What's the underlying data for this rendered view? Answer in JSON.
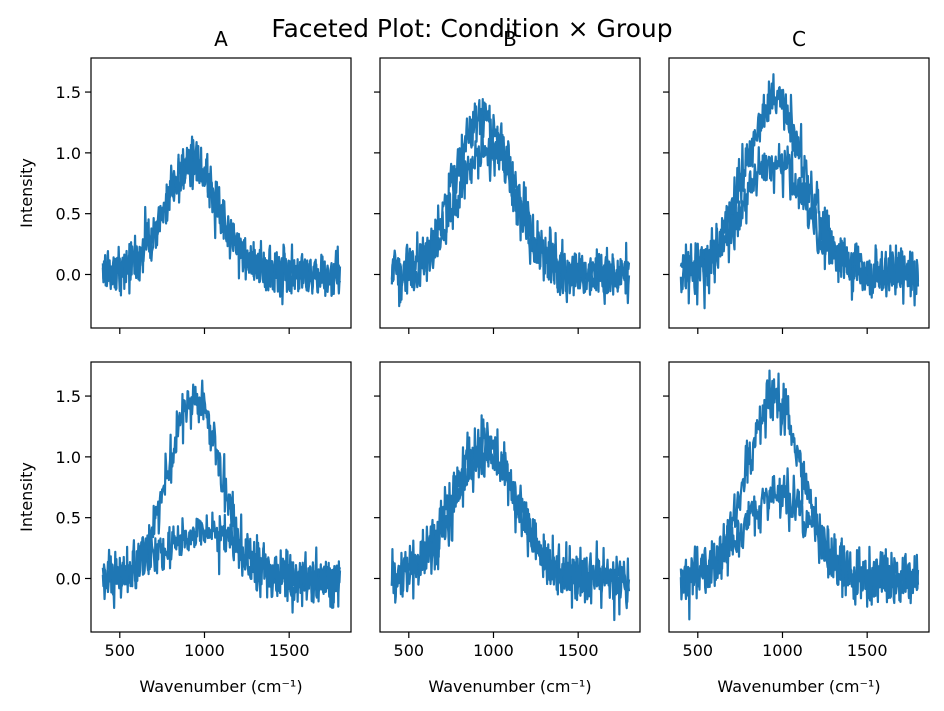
{
  "figure": {
    "title": "Faceted Plot: Condition × Group",
    "line_color": "#1f77b4"
  },
  "chart_data": {
    "type": "line",
    "title": "Faceted Plot: Condition × Group",
    "xlabel": "Wavenumber (cm⁻¹)",
    "ylabel": "Intensity",
    "xlim": [
      330,
      1865
    ],
    "ylim": [
      -0.44,
      1.78
    ],
    "x_ticks": [
      500,
      1000,
      1500
    ],
    "y_ticks": [
      0.0,
      0.5,
      1.0,
      1.5
    ],
    "x_tick_labels": [
      "500",
      "1000",
      "1500"
    ],
    "y_tick_labels": [
      "0.0",
      "0.5",
      "1.0",
      "1.5"
    ],
    "x_range": [
      400,
      1800
    ],
    "grid": false,
    "columns": [
      "A",
      "B",
      "C"
    ],
    "panels": [
      {
        "column": "A",
        "row": 1,
        "series": [
          {
            "peak_center": 920,
            "peak_height": 0.9,
            "peak_width": 160,
            "noise": 0.09
          },
          {
            "peak_center": 930,
            "peak_height": 0.88,
            "peak_width": 165,
            "noise": 0.09
          }
        ]
      },
      {
        "column": "B",
        "row": 1,
        "series": [
          {
            "peak_center": 940,
            "peak_height": 1.3,
            "peak_width": 170,
            "noise": 0.1
          },
          {
            "peak_center": 960,
            "peak_height": 1.05,
            "peak_width": 175,
            "noise": 0.1
          }
        ]
      },
      {
        "column": "C",
        "row": 1,
        "series": [
          {
            "peak_center": 950,
            "peak_height": 1.42,
            "peak_width": 180,
            "noise": 0.1
          },
          {
            "peak_center": 960,
            "peak_height": 0.92,
            "peak_width": 190,
            "noise": 0.1
          }
        ]
      },
      {
        "column": "A",
        "row": 2,
        "series": [
          {
            "peak_center": 940,
            "peak_height": 1.5,
            "peak_width": 150,
            "noise": 0.1
          },
          {
            "peak_center": 1000,
            "peak_height": 0.38,
            "peak_width": 230,
            "noise": 0.09
          }
        ]
      },
      {
        "column": "B",
        "row": 2,
        "series": [
          {
            "peak_center": 940,
            "peak_height": 1.12,
            "peak_width": 185,
            "noise": 0.1
          },
          {
            "peak_center": 960,
            "peak_height": 1.02,
            "peak_width": 190,
            "noise": 0.1
          }
        ]
      },
      {
        "column": "C",
        "row": 2,
        "series": [
          {
            "peak_center": 950,
            "peak_height": 1.48,
            "peak_width": 160,
            "noise": 0.1
          },
          {
            "peak_center": 970,
            "peak_height": 0.68,
            "peak_width": 200,
            "noise": 0.1
          }
        ]
      }
    ]
  }
}
